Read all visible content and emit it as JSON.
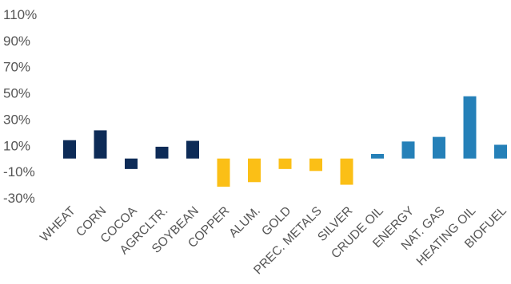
{
  "chart_data": {
    "type": "bar",
    "title": "",
    "xlabel": "",
    "ylabel": "",
    "ylim": [
      -30,
      110
    ],
    "y_ticks": [
      -30,
      -10,
      10,
      30,
      50,
      70,
      90,
      110
    ],
    "y_tick_labels": [
      "-30%",
      "-10%",
      "10%",
      "30%",
      "50%",
      "70%",
      "90%",
      "110%"
    ],
    "grid": false,
    "legend": "none",
    "categories": [
      "WHEAT",
      "CORN",
      "COCOA",
      "AGRCLTR.",
      "SOYBEAN",
      "COPPER",
      "ALUM.",
      "GOLD",
      "PREC. METALS",
      "SILVER",
      "CRUDE OIL",
      "ENERGY",
      "NAT. GAS",
      "HEATING OIL",
      "BIOFUEL"
    ],
    "values": [
      14,
      21.5,
      -8,
      9,
      13.5,
      -21.5,
      -18,
      -8,
      -9.5,
      -20,
      3.5,
      13,
      16.5,
      47.5,
      10.5
    ],
    "colors": [
      "#0d2b57",
      "#0d2b57",
      "#0d2b57",
      "#0d2b57",
      "#0d2b57",
      "#fbbf16",
      "#fbbf16",
      "#fbbf16",
      "#fbbf16",
      "#fbbf16",
      "#2580b8",
      "#2580b8",
      "#2580b8",
      "#2580b8",
      "#2580b8"
    ]
  }
}
